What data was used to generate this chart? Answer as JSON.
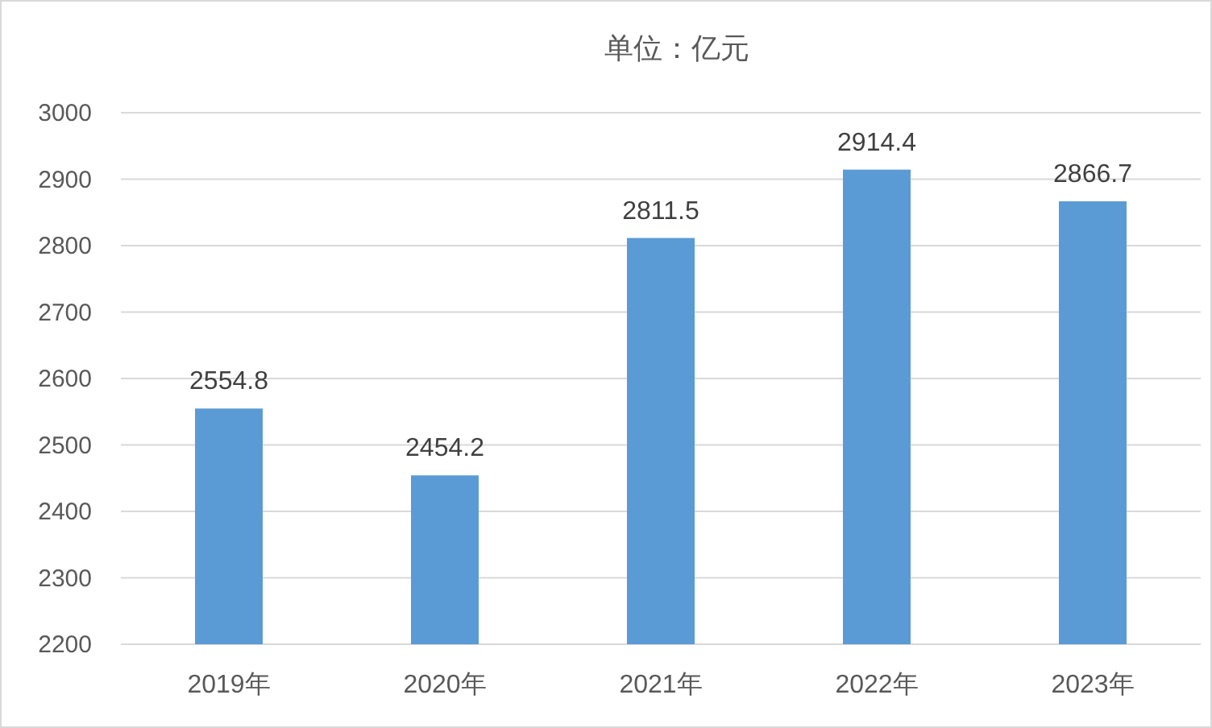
{
  "chart_data": {
    "type": "bar",
    "title": "单位：亿元",
    "categories": [
      "2019年",
      "2020年",
      "2021年",
      "2022年",
      "2023年"
    ],
    "values": [
      2554.8,
      2454.2,
      2811.5,
      2914.4,
      2866.7
    ],
    "color": "#5b9bd5",
    "ylim": [
      2200,
      3000
    ],
    "yticks": [
      2200,
      2300,
      2400,
      2500,
      2600,
      2700,
      2800,
      2900,
      3000
    ],
    "grid": "y",
    "data_labels": true
  }
}
